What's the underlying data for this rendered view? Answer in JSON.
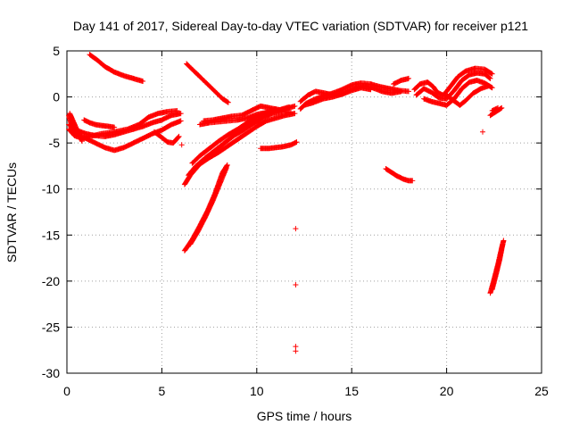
{
  "chart_data": {
    "type": "scatter",
    "title": "Day 141 of 2017, Sidereal Day-to-day VTEC variation (SDTVAR) for receiver p121",
    "xlabel": "GPS time / hours",
    "ylabel": "SDTVAR / TECUs",
    "xlim": [
      0,
      25
    ],
    "ylim": [
      -30,
      5
    ],
    "xticks": [
      0,
      5,
      10,
      15,
      20,
      25
    ],
    "yticks": [
      -30,
      -25,
      -20,
      -15,
      -10,
      -5,
      0,
      5
    ],
    "xtick_labels": [
      "0",
      "5",
      "10",
      "15",
      "20",
      "25"
    ],
    "ytick_labels": [
      "-30",
      "-25",
      "-20",
      "-15",
      "-10",
      "-5",
      "0",
      "5"
    ],
    "grid": true,
    "marker": "+",
    "color": "#ff0000",
    "tracks": [
      [
        [
          0.1,
          -2.0
        ],
        [
          0.3,
          -3.5
        ],
        [
          0.6,
          -4.2
        ],
        [
          1.0,
          -4.5
        ],
        [
          1.5,
          -5.0
        ],
        [
          2.0,
          -5.5
        ],
        [
          2.5,
          -5.8
        ],
        [
          3.0,
          -5.5
        ],
        [
          3.5,
          -5.0
        ],
        [
          4.0,
          -4.5
        ],
        [
          4.5,
          -4.0
        ],
        [
          5.0,
          -3.6
        ],
        [
          5.5,
          -3.0
        ],
        [
          6.0,
          -2.6
        ]
      ],
      [
        [
          0.1,
          -3.0
        ],
        [
          0.5,
          -3.6
        ],
        [
          1.0,
          -4.0
        ],
        [
          1.5,
          -4.2
        ],
        [
          2.0,
          -4.3
        ],
        [
          2.5,
          -4.1
        ],
        [
          3.0,
          -3.8
        ],
        [
          3.5,
          -3.5
        ],
        [
          4.0,
          -3.2
        ],
        [
          4.5,
          -2.8
        ],
        [
          5.0,
          -2.5
        ],
        [
          5.5,
          -2.0
        ],
        [
          6.0,
          -1.8
        ]
      ],
      [
        [
          0.1,
          -3.5
        ],
        [
          0.4,
          -4.2
        ],
        [
          0.8,
          -4.5
        ],
        [
          1.2,
          -4.3
        ],
        [
          1.8,
          -4.0
        ],
        [
          2.5,
          -3.8
        ],
        [
          3.2,
          -3.5
        ],
        [
          3.8,
          -3.0
        ],
        [
          4.3,
          -2.2
        ],
        [
          4.8,
          -1.8
        ],
        [
          5.3,
          -1.6
        ],
        [
          5.8,
          -1.5
        ]
      ],
      [
        [
          0.15,
          -1.8
        ],
        [
          0.3,
          -2.5
        ],
        [
          0.45,
          -3.2
        ],
        [
          0.6,
          -4.0
        ],
        [
          0.8,
          -4.8
        ]
      ],
      [
        [
          0.9,
          -2.5
        ],
        [
          1.2,
          -2.8
        ],
        [
          1.5,
          -3.0
        ],
        [
          1.8,
          -3.1
        ],
        [
          2.2,
          -3.2
        ],
        [
          2.5,
          -3.3
        ]
      ],
      [
        [
          1.2,
          4.6
        ],
        [
          1.6,
          4.0
        ],
        [
          2.0,
          3.3
        ],
        [
          2.5,
          2.7
        ],
        [
          3.0,
          2.3
        ],
        [
          3.5,
          2.0
        ],
        [
          4.0,
          1.7
        ]
      ],
      [
        [
          4.6,
          -3.8
        ],
        [
          5.0,
          -4.4
        ],
        [
          5.3,
          -4.9
        ],
        [
          5.6,
          -5.0
        ],
        [
          5.9,
          -4.3
        ]
      ],
      [
        [
          6.05,
          -5.2
        ]
      ],
      [
        [
          6.2,
          -9.5
        ],
        [
          6.5,
          -8.5
        ],
        [
          7.0,
          -7.3
        ],
        [
          7.5,
          -6.6
        ],
        [
          8.0,
          -6.0
        ],
        [
          8.5,
          -5.3
        ],
        [
          9.0,
          -4.6
        ],
        [
          9.5,
          -3.9
        ],
        [
          10.0,
          -3.2
        ],
        [
          10.5,
          -2.6
        ],
        [
          11.0,
          -2.3
        ],
        [
          11.5,
          -2.0
        ],
        [
          12.0,
          -1.8
        ]
      ],
      [
        [
          6.4,
          -8.5
        ],
        [
          6.8,
          -7.5
        ],
        [
          7.3,
          -6.6
        ],
        [
          7.8,
          -5.8
        ],
        [
          8.3,
          -5.0
        ],
        [
          8.8,
          -4.2
        ],
        [
          9.3,
          -3.6
        ],
        [
          9.8,
          -2.9
        ],
        [
          10.3,
          -2.3
        ],
        [
          10.8,
          -1.8
        ],
        [
          11.3,
          -1.6
        ],
        [
          11.8,
          -1.7
        ]
      ],
      [
        [
          6.6,
          -7.2
        ],
        [
          7.0,
          -6.4
        ],
        [
          7.5,
          -5.6
        ],
        [
          8.0,
          -4.8
        ],
        [
          8.5,
          -4.1
        ],
        [
          9.0,
          -3.5
        ],
        [
          9.5,
          -2.8
        ],
        [
          10.0,
          -2.2
        ],
        [
          10.5,
          -1.7
        ],
        [
          11.0,
          -1.3
        ]
      ],
      [
        [
          6.2,
          -16.7
        ],
        [
          6.6,
          -15.5
        ],
        [
          7.0,
          -14.0
        ],
        [
          7.4,
          -12.4
        ],
        [
          7.8,
          -10.5
        ],
        [
          8.2,
          -8.2
        ],
        [
          8.45,
          -7.4
        ]
      ],
      [
        [
          6.5,
          -16.0
        ],
        [
          6.9,
          -14.6
        ],
        [
          7.3,
          -13.0
        ],
        [
          7.7,
          -11.2
        ],
        [
          8.1,
          -9.2
        ],
        [
          8.4,
          -7.7
        ]
      ],
      [
        [
          6.3,
          3.6
        ],
        [
          6.7,
          2.8
        ],
        [
          7.0,
          2.2
        ],
        [
          7.4,
          1.4
        ],
        [
          7.8,
          0.6
        ],
        [
          8.2,
          -0.2
        ],
        [
          8.5,
          -0.6
        ]
      ],
      [
        [
          7.0,
          -3.0
        ],
        [
          7.5,
          -2.8
        ],
        [
          8.0,
          -2.7
        ],
        [
          8.5,
          -2.6
        ],
        [
          9.0,
          -2.5
        ],
        [
          9.5,
          -2.3
        ],
        [
          10.0,
          -1.9
        ],
        [
          10.5,
          -1.7
        ],
        [
          11.0,
          -1.5
        ],
        [
          11.5,
          -1.3
        ],
        [
          12.0,
          -1.0
        ]
      ],
      [
        [
          7.2,
          -2.6
        ],
        [
          7.7,
          -2.5
        ],
        [
          8.2,
          -2.3
        ],
        [
          8.7,
          -2.1
        ],
        [
          9.2,
          -2.0
        ],
        [
          9.7,
          -1.5
        ],
        [
          10.2,
          -1.0
        ],
        [
          10.7,
          -1.2
        ],
        [
          11.2,
          -1.4
        ],
        [
          11.7,
          -1.1
        ]
      ],
      [
        [
          10.2,
          -5.6
        ],
        [
          10.6,
          -5.6
        ],
        [
          11.0,
          -5.5
        ],
        [
          11.4,
          -5.4
        ],
        [
          11.8,
          -5.2
        ],
        [
          12.1,
          -4.9
        ]
      ],
      [
        [
          12.05,
          -14.3
        ]
      ],
      [
        [
          12.05,
          -20.4
        ]
      ],
      [
        [
          12.05,
          -27.1
        ]
      ],
      [
        [
          12.05,
          -27.6
        ]
      ],
      [
        [
          12.3,
          -1.3
        ],
        [
          12.6,
          -0.7
        ],
        [
          13.0,
          -0.3
        ],
        [
          13.5,
          0.1
        ],
        [
          14.0,
          0.4
        ],
        [
          14.5,
          0.8
        ],
        [
          15.0,
          1.3
        ],
        [
          15.5,
          1.5
        ],
        [
          16.0,
          1.4
        ],
        [
          16.5,
          1.1
        ],
        [
          17.0,
          0.9
        ],
        [
          17.5,
          0.7
        ],
        [
          18.0,
          0.6
        ]
      ],
      [
        [
          12.3,
          -0.5
        ],
        [
          12.7,
          0.2
        ],
        [
          13.1,
          0.6
        ],
        [
          13.6,
          0.4
        ],
        [
          14.1,
          0.2
        ],
        [
          14.6,
          0.4
        ],
        [
          15.1,
          0.9
        ],
        [
          15.6,
          1.2
        ],
        [
          16.1,
          1.0
        ],
        [
          16.6,
          0.6
        ],
        [
          17.1,
          0.4
        ],
        [
          17.6,
          0.6
        ]
      ],
      [
        [
          12.5,
          -0.9
        ],
        [
          13.0,
          -0.6
        ],
        [
          13.5,
          -0.2
        ],
        [
          14.0,
          0.0
        ],
        [
          14.5,
          0.3
        ],
        [
          15.0,
          0.7
        ],
        [
          15.5,
          1.0
        ],
        [
          16.0,
          0.8
        ]
      ],
      [
        [
          17.2,
          1.4
        ],
        [
          17.6,
          1.8
        ],
        [
          18.0,
          2.0
        ]
      ],
      [
        [
          16.8,
          -7.8
        ],
        [
          17.1,
          -8.2
        ],
        [
          17.4,
          -8.6
        ],
        [
          17.7,
          -8.9
        ],
        [
          18.0,
          -9.1
        ],
        [
          18.2,
          -9.1
        ]
      ],
      [
        [
          18.3,
          0.8
        ],
        [
          18.6,
          1.4
        ],
        [
          19.0,
          1.6
        ],
        [
          19.3,
          1.1
        ],
        [
          19.5,
          0.5
        ],
        [
          19.8,
          0.2
        ],
        [
          20.0,
          0.6
        ],
        [
          20.3,
          1.4
        ],
        [
          20.6,
          2.2
        ],
        [
          21.0,
          2.8
        ],
        [
          21.5,
          3.1
        ],
        [
          22.0,
          3.0
        ],
        [
          22.4,
          2.5
        ]
      ],
      [
        [
          18.4,
          0.2
        ],
        [
          18.8,
          0.9
        ],
        [
          19.2,
          0.5
        ],
        [
          19.6,
          -0.1
        ],
        [
          20.0,
          -0.2
        ],
        [
          20.4,
          0.7
        ],
        [
          20.8,
          1.8
        ],
        [
          21.2,
          2.4
        ],
        [
          21.6,
          2.6
        ],
        [
          22.0,
          2.5
        ],
        [
          22.3,
          2.0
        ]
      ],
      [
        [
          18.8,
          -0.2
        ],
        [
          19.2,
          -0.5
        ],
        [
          19.6,
          -0.7
        ],
        [
          20.0,
          -0.9
        ],
        [
          20.4,
          -0.2
        ],
        [
          20.8,
          0.9
        ],
        [
          21.2,
          1.6
        ],
        [
          21.6,
          1.8
        ],
        [
          22.0,
          1.5
        ],
        [
          22.4,
          1.0
        ]
      ],
      [
        [
          20.0,
          0.2
        ],
        [
          20.3,
          -0.3
        ],
        [
          20.7,
          -0.9
        ],
        [
          21.0,
          -0.4
        ],
        [
          21.4,
          0.4
        ],
        [
          21.8,
          0.9
        ],
        [
          22.2,
          1.2
        ]
      ],
      [
        [
          21.9,
          -3.8
        ]
      ],
      [
        [
          22.3,
          -2.0
        ],
        [
          22.6,
          -1.6
        ],
        [
          22.9,
          -1.2
        ]
      ],
      [
        [
          22.4,
          -1.5
        ],
        [
          22.7,
          -1.2
        ]
      ],
      [
        [
          22.3,
          -21.3
        ],
        [
          22.5,
          -19.8
        ],
        [
          22.7,
          -18.2
        ],
        [
          22.9,
          -16.4
        ],
        [
          23.0,
          -15.6
        ]
      ],
      [
        [
          22.4,
          -20.9
        ],
        [
          22.6,
          -19.3
        ],
        [
          22.8,
          -17.6
        ],
        [
          22.95,
          -16.0
        ]
      ]
    ]
  }
}
